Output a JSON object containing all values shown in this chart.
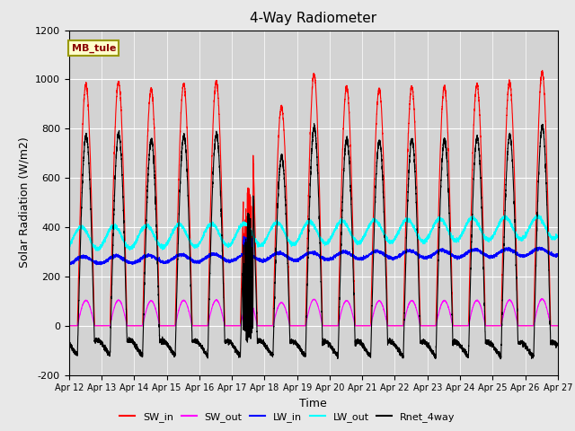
{
  "title": "4-Way Radiometer",
  "xlabel": "Time",
  "ylabel": "Solar Radiation (W/m2)",
  "ylim": [
    -200,
    1200
  ],
  "xtick_labels": [
    "Apr 12",
    "Apr 13",
    "Apr 14",
    "Apr 15",
    "Apr 16",
    "Apr 17",
    "Apr 18",
    "Apr 19",
    "Apr 20",
    "Apr 21",
    "Apr 22",
    "Apr 23",
    "Apr 24",
    "Apr 25",
    "Apr 26",
    "Apr 27"
  ],
  "ytick_values": [
    -200,
    0,
    200,
    400,
    600,
    800,
    1000,
    1200
  ],
  "background_color": "#e8e8e8",
  "plot_bg_color": "#d3d3d3",
  "legend_label_box": "MB_tule",
  "legend_box_bg": "#ffffcc",
  "legend_box_border": "#999900",
  "series": [
    {
      "name": "SW_in",
      "color": "#ff0000",
      "lw": 0.8
    },
    {
      "name": "SW_out",
      "color": "#ff00ff",
      "lw": 0.8
    },
    {
      "name": "LW_in",
      "color": "#0000ff",
      "lw": 0.8
    },
    {
      "name": "LW_out",
      "color": "#00ffff",
      "lw": 0.8
    },
    {
      "name": "Rnet_4way",
      "color": "#000000",
      "lw": 0.8
    }
  ],
  "n_days": 15,
  "pts_per_day": 480
}
